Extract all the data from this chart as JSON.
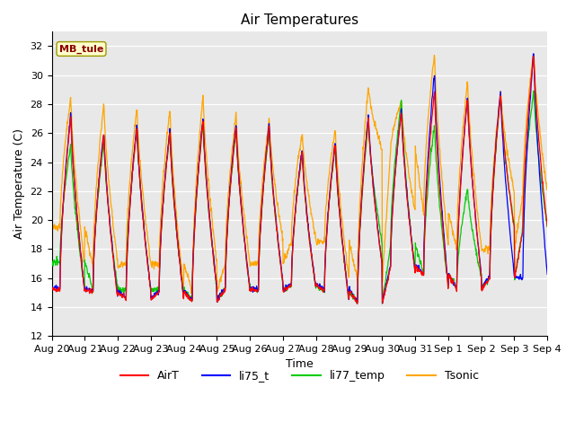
{
  "title": "Air Temperatures",
  "xlabel": "Time",
  "ylabel": "Air Temperature (C)",
  "ylim": [
    12,
    33
  ],
  "yticks": [
    12,
    14,
    16,
    18,
    20,
    22,
    24,
    26,
    28,
    30,
    32
  ],
  "annotation_text": "MB_tule",
  "annotation_color": "#8B0000",
  "annotation_bg": "#FFFFCC",
  "series_colors": {
    "AirT": "#FF0000",
    "li75_t": "#0000FF",
    "li77_temp": "#00CC00",
    "Tsonic": "#FFA500"
  },
  "legend_labels": [
    "AirT",
    "li75_t",
    "li77_temp",
    "Tsonic"
  ],
  "x_tick_labels": [
    "Aug 20",
    "Aug 21",
    "Aug 22",
    "Aug 23",
    "Aug 24",
    "Aug 25",
    "Aug 26",
    "Aug 27",
    "Aug 28",
    "Aug 29",
    "Aug 30",
    "Aug 31",
    "Sep 1",
    "Sep 2",
    "Sep 3",
    "Sep 4"
  ],
  "day_peaks_airt": [
    27.2,
    15.2,
    26.0,
    15.0,
    26.5,
    14.5,
    26.2,
    15.0,
    27.0,
    14.4,
    26.5,
    15.2,
    26.5,
    15.1,
    24.8,
    15.5,
    25.3,
    15.1,
    27.2,
    14.2,
    27.5,
    16.8,
    29.0,
    16.2,
    28.5,
    15.2,
    28.8,
    16.0,
    31.5,
    19.3
  ],
  "day_peaks_li75": [
    27.4,
    15.3,
    26.2,
    15.1,
    26.7,
    14.6,
    26.4,
    15.1,
    27.2,
    14.5,
    26.7,
    15.3,
    26.7,
    15.2,
    25.0,
    15.6,
    25.5,
    15.2,
    27.4,
    14.3,
    27.7,
    16.9,
    30.3,
    16.3,
    28.7,
    15.3,
    29.0,
    16.1,
    31.7,
    16.0
  ],
  "day_peaks_li77": [
    25.2,
    17.1,
    25.5,
    15.2,
    26.4,
    15.2,
    26.1,
    15.2,
    26.8,
    14.5,
    26.3,
    15.2,
    26.3,
    15.2,
    24.7,
    15.5,
    25.1,
    15.1,
    26.8,
    14.3,
    28.3,
    18.3,
    26.7,
    16.3,
    22.2,
    15.3,
    28.7,
    16.0,
    29.0,
    19.4
  ],
  "day_peaks_tsonic": [
    28.5,
    19.5,
    28.0,
    16.8,
    27.8,
    17.0,
    27.7,
    16.9,
    28.7,
    15.1,
    27.3,
    17.0,
    27.0,
    17.0,
    26.0,
    18.5,
    26.3,
    18.5,
    29.2,
    15.8,
    28.2,
    24.8,
    31.6,
    20.5,
    29.7,
    18.0,
    28.9,
    18.0,
    31.7,
    21.8
  ],
  "num_days": 15,
  "pts_per_day": 96
}
